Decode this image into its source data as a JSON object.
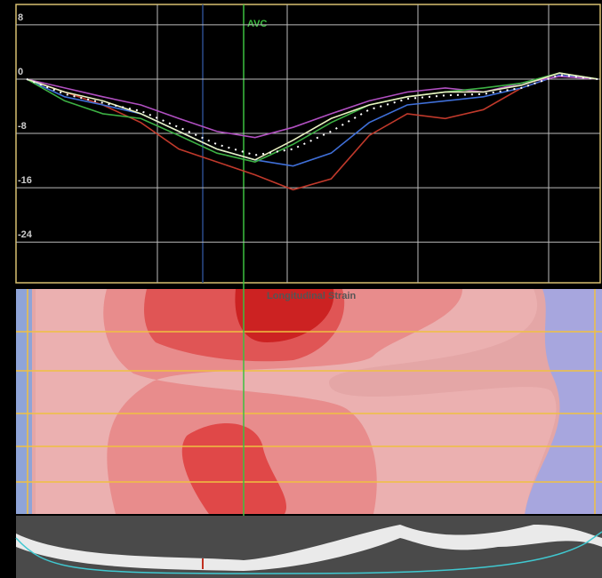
{
  "chart_data": {
    "type": "line",
    "annotation": "AVC",
    "panel_title": "Longitudinal Strain",
    "categories": [
      null,
      null,
      null,
      null,
      null,
      null,
      null,
      null,
      null,
      null,
      null,
      null,
      null,
      null,
      null,
      null
    ],
    "ylim": [
      -30,
      11
    ],
    "yticks": [
      8,
      0,
      -8,
      -16,
      -24
    ],
    "grid": true,
    "series": [
      {
        "color": "#c0392b",
        "values": [
          0,
          -1.9,
          -3.8,
          -6.4,
          -10.3,
          -12.2,
          -14.1,
          -16.3,
          -14.7,
          -8.3,
          -5.1,
          -5.8,
          -4.5,
          -1.3,
          0.6,
          0
        ]
      },
      {
        "color": "#3f6fd8",
        "values": [
          0,
          -2.6,
          -3.8,
          -5.1,
          -7.7,
          -10.3,
          -11.9,
          -12.8,
          -10.9,
          -6.4,
          -3.8,
          -3.2,
          -2.6,
          -1.3,
          0.6,
          0
        ]
      },
      {
        "color": "#b04fc0",
        "values": [
          0,
          -1.3,
          -2.6,
          -3.8,
          -5.8,
          -7.7,
          -8.6,
          -7.1,
          -5.1,
          -3.2,
          -1.9,
          -1.3,
          -1.9,
          -0.6,
          0.4,
          0
        ]
      },
      {
        "color": "#3cb043",
        "values": [
          0,
          -3.2,
          -5.1,
          -5.8,
          -8.3,
          -10.9,
          -12.2,
          -9.6,
          -6.4,
          -3.8,
          -2.6,
          -1.9,
          -1.3,
          -0.6,
          0.9,
          0
        ]
      },
      {
        "color": "#e8f0c0",
        "values": [
          0,
          -1.9,
          -3.2,
          -5.1,
          -7.7,
          -10.3,
          -11.9,
          -9,
          -5.8,
          -3.8,
          -2.6,
          -1.9,
          -1.9,
          -0.9,
          0.9,
          0
        ]
      },
      {
        "color": "#ffffff",
        "dashed": true,
        "values": [
          0,
          -2.2,
          -3.5,
          -4.7,
          -7.1,
          -9.6,
          -11.2,
          -10.3,
          -7.7,
          -4.5,
          -2.9,
          -2.4,
          -2.2,
          -1.3,
          0.6,
          0
        ]
      }
    ]
  }
}
